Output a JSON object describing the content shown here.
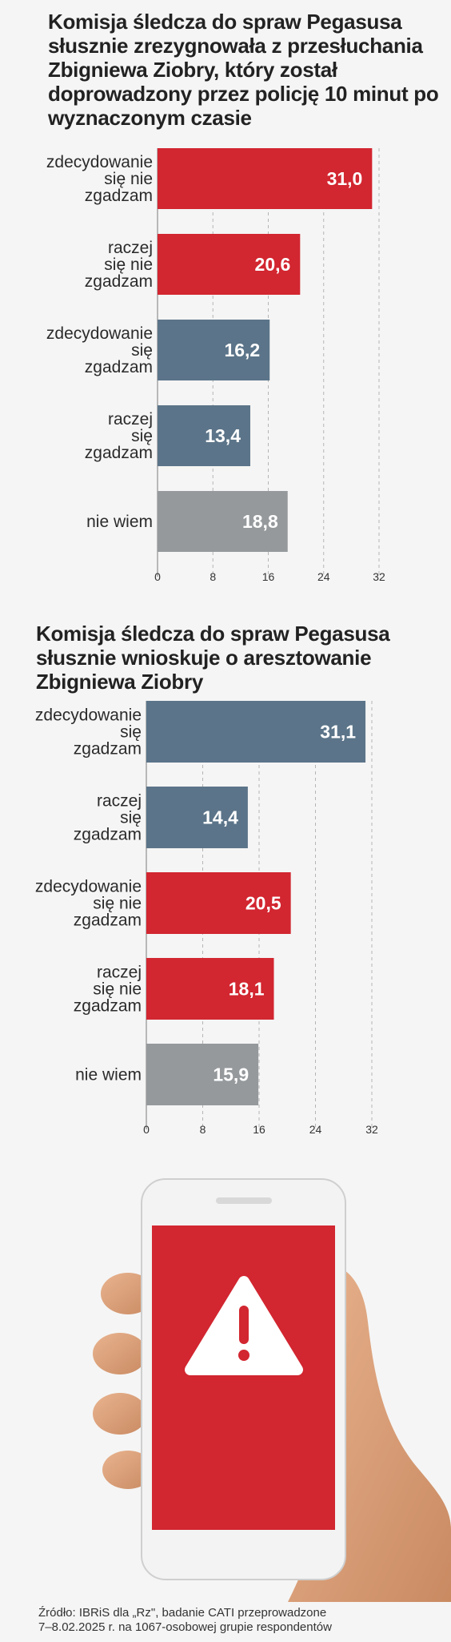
{
  "chart_data": [
    {
      "type": "bar",
      "orientation": "horizontal",
      "title": "Komisja śledcza do spraw Pegasusa słusznie zrezygnowała z przesłuchania Zbigniewa Ziobry, który został doprowadzony przez policję 10 minut po wyznaczonym czasie",
      "categories": [
        [
          "zdecydowanie",
          "się nie",
          "zgadzam"
        ],
        [
          "raczej",
          "się nie",
          "zgadzam"
        ],
        [
          "zdecydowanie",
          "się",
          "zgadzam"
        ],
        [
          "raczej",
          "się",
          "zgadzam"
        ],
        [
          "nie wiem"
        ]
      ],
      "values": [
        31.0,
        20.6,
        16.2,
        13.4,
        18.8
      ],
      "value_labels": [
        "31,0",
        "20,6",
        "16,2",
        "13,4",
        "18,8"
      ],
      "colors": [
        "#d22630",
        "#d22630",
        "#5b7489",
        "#5b7489",
        "#95999c"
      ],
      "xlim": [
        0,
        32
      ],
      "xticks": [
        "0",
        "8",
        "16",
        "24",
        "32"
      ],
      "grid": true
    },
    {
      "type": "bar",
      "orientation": "horizontal",
      "title": "Komisja śledcza do spraw Pegasusa słusznie wnioskuje o aresztowanie Zbigniewa Ziobry",
      "categories": [
        [
          "zdecydowanie",
          "się",
          "zgadzam"
        ],
        [
          "raczej",
          "się",
          "zgadzam"
        ],
        [
          "zdecydowanie",
          "się nie",
          "zgadzam"
        ],
        [
          "raczej",
          "się nie",
          "zgadzam"
        ],
        [
          "nie wiem"
        ]
      ],
      "values": [
        31.1,
        14.4,
        20.5,
        18.1,
        15.9
      ],
      "value_labels": [
        "31,1",
        "14,4",
        "20,5",
        "18,1",
        "15,9"
      ],
      "colors": [
        "#5b7489",
        "#5b7489",
        "#d22630",
        "#d22630",
        "#95999c"
      ],
      "xlim": [
        0,
        32
      ],
      "xticks": [
        "0",
        "8",
        "16",
        "24",
        "32"
      ],
      "grid": true
    }
  ],
  "illustration": {
    "icon": "warning-icon",
    "screen_color": "#d22630"
  },
  "source": {
    "line1": "Źródło: IBRiS dla „Rz\", badanie CATI przeprowadzone",
    "line2": "7–8.02.2025 r. na 1067-osobowej grupie respondentów"
  }
}
